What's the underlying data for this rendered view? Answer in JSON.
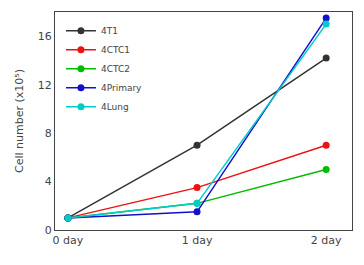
{
  "chart_data": {
    "type": "line",
    "x": [
      0,
      1,
      2
    ],
    "series": [
      {
        "name": "4T1",
        "color": "#333333",
        "marker": "circle",
        "values": [
          1.0,
          7.0,
          14.2
        ]
      },
      {
        "name": "4CTC1",
        "color": "#ee1111",
        "marker": "circle",
        "values": [
          1.0,
          3.5,
          7.0
        ]
      },
      {
        "name": "4CTC2",
        "color": "#00bb00",
        "marker": "circle",
        "values": [
          1.0,
          2.2,
          5.0
        ]
      },
      {
        "name": "4Primary",
        "color": "#1111cc",
        "marker": "circle",
        "values": [
          1.0,
          1.5,
          17.5
        ]
      },
      {
        "name": "4Lung",
        "color": "#00cccc",
        "marker": "circle",
        "values": [
          1.0,
          2.2,
          17.0
        ]
      }
    ],
    "xlim": [
      -0.1,
      2.2
    ],
    "xticks": [
      {
        "value": 0,
        "label": "0 day"
      },
      {
        "value": 1,
        "label": "1 day"
      },
      {
        "value": 2,
        "label": "2 day"
      }
    ],
    "ylabel": "Cell number (x10⁵)",
    "ylim": [
      0,
      18
    ],
    "yticks": [
      0,
      4,
      8,
      12,
      16
    ],
    "grid": false,
    "legend": "upper left"
  }
}
